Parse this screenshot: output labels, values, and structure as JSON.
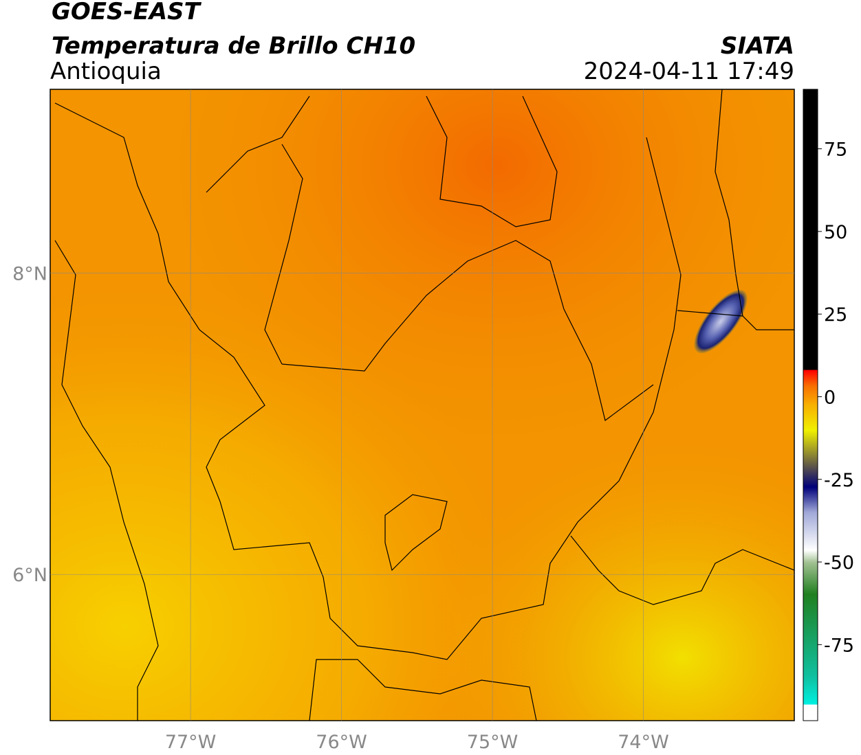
{
  "chart_data": {
    "type": "map",
    "title": "GOES-EAST",
    "subtitle": "Temperatura de Brillo CH10",
    "region": "Antioquia",
    "source": "SIATA",
    "datetime": "2024-04-11 17:49",
    "xlim": [
      -77.93,
      -73.0
    ],
    "ylim": [
      5.03,
      9.22
    ],
    "xticks": [
      {
        "value": -77,
        "label": "77°W"
      },
      {
        "value": -76,
        "label": "76°W"
      },
      {
        "value": -75,
        "label": "75°W"
      },
      {
        "value": -74,
        "label": "74°W"
      }
    ],
    "yticks": [
      {
        "value": 6,
        "label": "6°N"
      },
      {
        "value": 8,
        "label": "8°N"
      }
    ],
    "grid": true,
    "colorbar": {
      "lim": [
        -98,
        93
      ],
      "ticks": [
        -75,
        -50,
        -25,
        0,
        25,
        50,
        75
      ]
    }
  }
}
